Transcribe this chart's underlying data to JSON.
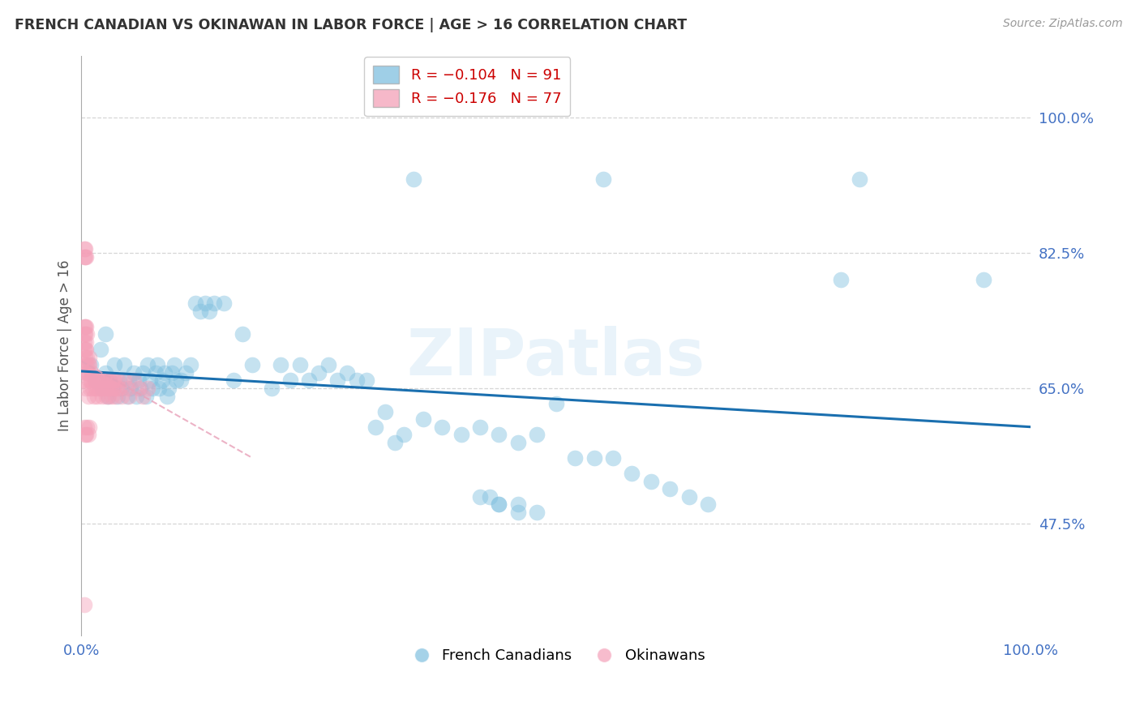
{
  "title": "FRENCH CANADIAN VS OKINAWAN IN LABOR FORCE | AGE > 16 CORRELATION CHART",
  "source": "Source: ZipAtlas.com",
  "ylabel": "In Labor Force | Age > 16",
  "xlim": [
    0.0,
    1.0
  ],
  "ylim": [
    0.33,
    1.08
  ],
  "yticks": [
    0.475,
    0.65,
    0.825,
    1.0
  ],
  "ytick_labels": [
    "47.5%",
    "65.0%",
    "82.5%",
    "100.0%"
  ],
  "xticks": [
    0.0,
    1.0
  ],
  "xtick_labels": [
    "0.0%",
    "100.0%"
  ],
  "blue_color": "#7fbfdf",
  "pink_color": "#f4a0b8",
  "trendline_color": "#1a6faf",
  "watermark": "ZIPatlas",
  "blue_scatter_x": [
    0.01,
    0.015,
    0.02,
    0.022,
    0.025,
    0.028,
    0.03,
    0.032,
    0.035,
    0.038,
    0.04,
    0.042,
    0.045,
    0.048,
    0.05,
    0.052,
    0.055,
    0.058,
    0.06,
    0.062,
    0.065,
    0.068,
    0.07,
    0.072,
    0.075,
    0.078,
    0.08,
    0.082,
    0.085,
    0.088,
    0.09,
    0.092,
    0.095,
    0.098,
    0.1,
    0.105,
    0.11,
    0.115,
    0.12,
    0.125,
    0.13,
    0.135,
    0.14,
    0.15,
    0.16,
    0.17,
    0.18,
    0.2,
    0.21,
    0.22,
    0.23,
    0.24,
    0.25,
    0.26,
    0.27,
    0.28,
    0.29,
    0.3,
    0.31,
    0.32,
    0.33,
    0.34,
    0.36,
    0.38,
    0.4,
    0.42,
    0.44,
    0.46,
    0.48,
    0.5,
    0.52,
    0.54,
    0.56,
    0.58,
    0.6,
    0.62,
    0.64,
    0.66,
    0.35,
    0.55,
    0.82,
    0.95,
    0.8,
    0.44,
    0.46,
    0.48,
    0.42,
    0.43,
    0.44,
    0.46,
    0.025
  ],
  "blue_scatter_y": [
    0.68,
    0.66,
    0.7,
    0.65,
    0.67,
    0.64,
    0.66,
    0.65,
    0.68,
    0.64,
    0.66,
    0.65,
    0.68,
    0.64,
    0.66,
    0.65,
    0.67,
    0.64,
    0.66,
    0.65,
    0.67,
    0.64,
    0.68,
    0.66,
    0.65,
    0.67,
    0.68,
    0.65,
    0.66,
    0.67,
    0.64,
    0.65,
    0.67,
    0.68,
    0.66,
    0.66,
    0.67,
    0.68,
    0.76,
    0.75,
    0.76,
    0.75,
    0.76,
    0.76,
    0.66,
    0.72,
    0.68,
    0.65,
    0.68,
    0.66,
    0.68,
    0.66,
    0.67,
    0.68,
    0.66,
    0.67,
    0.66,
    0.66,
    0.6,
    0.62,
    0.58,
    0.59,
    0.61,
    0.6,
    0.59,
    0.6,
    0.59,
    0.58,
    0.59,
    0.63,
    0.56,
    0.56,
    0.56,
    0.54,
    0.53,
    0.52,
    0.51,
    0.5,
    0.92,
    0.92,
    0.92,
    0.79,
    0.79,
    0.5,
    0.49,
    0.49,
    0.51,
    0.51,
    0.5,
    0.5,
    0.72
  ],
  "pink_scatter_x": [
    0.003,
    0.005,
    0.006,
    0.007,
    0.008,
    0.009,
    0.01,
    0.011,
    0.012,
    0.013,
    0.014,
    0.015,
    0.016,
    0.017,
    0.018,
    0.019,
    0.02,
    0.021,
    0.022,
    0.023,
    0.024,
    0.025,
    0.026,
    0.027,
    0.028,
    0.029,
    0.03,
    0.031,
    0.032,
    0.033,
    0.034,
    0.035,
    0.036,
    0.037,
    0.038,
    0.04,
    0.042,
    0.045,
    0.048,
    0.05,
    0.055,
    0.06,
    0.065,
    0.07,
    0.004,
    0.005,
    0.006,
    0.007,
    0.008,
    0.003,
    0.004,
    0.005,
    0.006,
    0.007,
    0.008,
    0.003,
    0.004,
    0.005,
    0.003,
    0.004,
    0.003,
    0.004,
    0.005,
    0.006,
    0.003,
    0.004,
    0.003,
    0.004,
    0.005,
    0.003,
    0.004,
    0.005,
    0.006,
    0.007,
    0.008,
    0.003
  ],
  "pink_scatter_y": [
    0.66,
    0.65,
    0.67,
    0.64,
    0.66,
    0.65,
    0.66,
    0.67,
    0.65,
    0.64,
    0.66,
    0.65,
    0.66,
    0.64,
    0.65,
    0.66,
    0.65,
    0.66,
    0.64,
    0.65,
    0.66,
    0.65,
    0.64,
    0.66,
    0.65,
    0.64,
    0.66,
    0.65,
    0.64,
    0.66,
    0.65,
    0.66,
    0.64,
    0.65,
    0.66,
    0.65,
    0.64,
    0.66,
    0.65,
    0.64,
    0.66,
    0.65,
    0.64,
    0.65,
    0.68,
    0.67,
    0.68,
    0.67,
    0.68,
    0.7,
    0.69,
    0.7,
    0.69,
    0.68,
    0.69,
    0.71,
    0.7,
    0.71,
    0.72,
    0.72,
    0.73,
    0.73,
    0.73,
    0.72,
    0.82,
    0.82,
    0.83,
    0.83,
    0.82,
    0.6,
    0.59,
    0.59,
    0.6,
    0.59,
    0.6,
    0.37
  ],
  "trendline_x": [
    0.0,
    1.0
  ],
  "trendline_y": [
    0.672,
    0.6
  ],
  "pink_trendline_x": [
    0.0,
    0.18
  ],
  "pink_trendline_y": [
    0.685,
    0.56
  ]
}
